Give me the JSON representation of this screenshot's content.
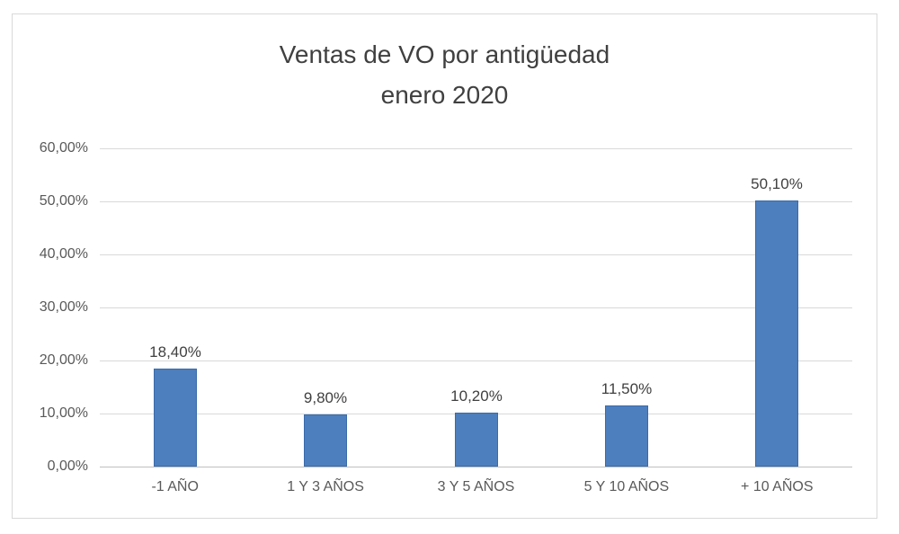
{
  "chart_data": {
    "type": "bar",
    "title": "Ventas de VO por antigüedad enero 2020",
    "title_lines": [
      "Ventas de VO por antigüedad",
      "enero 2020"
    ],
    "categories": [
      "-1 AÑO",
      "1 Y 3 AÑOS",
      "3 Y 5 AÑOS",
      "5 Y 10 AÑOS",
      "+ 10 AÑOS"
    ],
    "values": [
      18.4,
      9.8,
      10.2,
      11.5,
      50.1
    ],
    "value_labels": [
      "18,40%",
      "9,80%",
      "10,20%",
      "11,50%",
      "50,10%"
    ],
    "xlabel": "",
    "ylabel": "",
    "ylim": [
      0,
      60
    ],
    "ytick_step": 10,
    "ytick_labels": [
      "0,00%",
      "10,00%",
      "20,00%",
      "30,00%",
      "40,00%",
      "50,00%",
      "60,00%"
    ],
    "grid": true,
    "legend": "none",
    "bar_color": "#4d7ebd",
    "bar_border_color": "#3a6bab",
    "gridline_color": "#d9d9d9",
    "axis_line_color": "#bfbfbf",
    "text_color": "#404040"
  }
}
